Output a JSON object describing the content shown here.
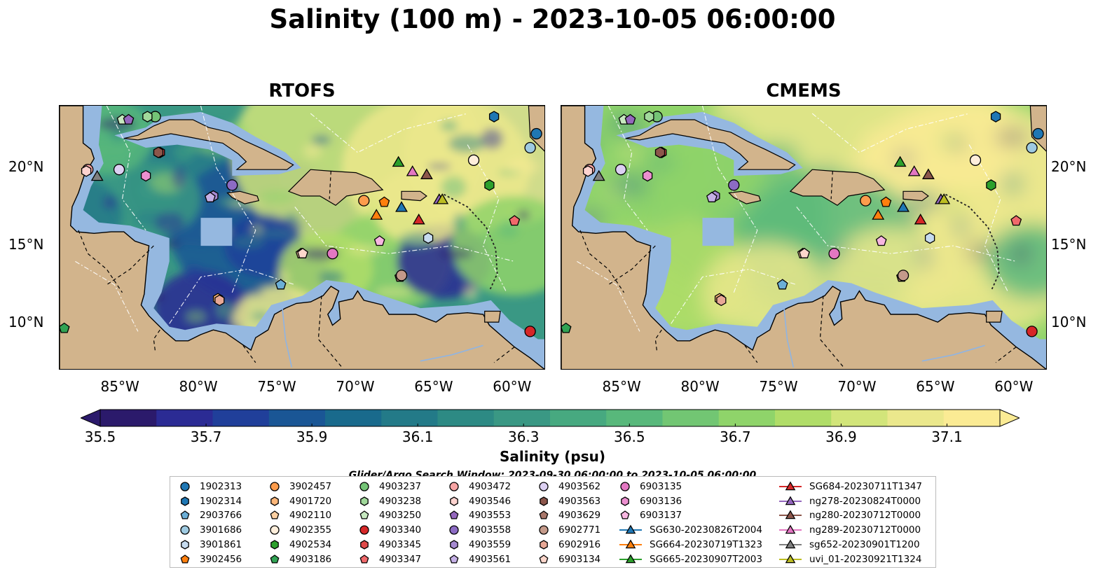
{
  "title": "Salinity (100 m) - 2023-10-05 06:00:00",
  "panels": [
    {
      "title": "RTOFS",
      "field_style": "rtofs"
    },
    {
      "title": "CMEMS",
      "field_style": "cmems"
    }
  ],
  "map": {
    "lon_range": [
      -89,
      -58
    ],
    "lat_range": [
      7,
      24
    ],
    "lon_ticks": [
      {
        "v": -85,
        "label": "85°W"
      },
      {
        "v": -80,
        "label": "80°W"
      },
      {
        "v": -75,
        "label": "75°W"
      },
      {
        "v": -70,
        "label": "70°W"
      },
      {
        "v": -65,
        "label": "65°W"
      },
      {
        "v": -60,
        "label": "60°W"
      }
    ],
    "lat_ticks": [
      {
        "v": 20,
        "label": "20°N"
      },
      {
        "v": 15,
        "label": "15°N"
      },
      {
        "v": 10,
        "label": "10°N"
      }
    ],
    "land_color": "#d2b48c",
    "shelf_color": "#95b8e0"
  },
  "colorbar": {
    "label": "Salinity (psu)",
    "min": 35.5,
    "max": 37.2,
    "step": 0.1,
    "extend": "both",
    "ticks": [
      "35.5",
      "35.7",
      "35.9",
      "36.1",
      "36.3",
      "36.5",
      "36.7",
      "36.9",
      "37.1"
    ],
    "colors": [
      "#2b1a6b",
      "#2b2b94",
      "#203f9a",
      "#1a5695",
      "#196a8c",
      "#237a88",
      "#2d8a84",
      "#3a9884",
      "#47a980",
      "#58b87b",
      "#72c673",
      "#8fd46a",
      "#b0dd68",
      "#d2e57a",
      "#ebe88c",
      "#fbeb94"
    ]
  },
  "search_window": "Glider/Argo Search Window: 2023-09-30 06:00:00 to 2023-10-05 06:00:00",
  "legend": [
    {
      "label": "1902313",
      "marker": "circle",
      "color": "#1f77b4"
    },
    {
      "label": "1902314",
      "marker": "hexagon",
      "color": "#1f77b4"
    },
    {
      "label": "2903766",
      "marker": "pentagon",
      "color": "#6baed6"
    },
    {
      "label": "3901686",
      "marker": "circle",
      "color": "#9ecae1"
    },
    {
      "label": "3901861",
      "marker": "hexagon",
      "color": "#c6dbef"
    },
    {
      "label": "3902456",
      "marker": "pentagon",
      "color": "#ff7f0e"
    },
    {
      "label": "3902457",
      "marker": "circle",
      "color": "#fd9c4c"
    },
    {
      "label": "4901720",
      "marker": "hexagon",
      "color": "#fdb77a"
    },
    {
      "label": "4902110",
      "marker": "pentagon",
      "color": "#fdd0a2"
    },
    {
      "label": "4902355",
      "marker": "circle",
      "color": "#feeedb"
    },
    {
      "label": "4902534",
      "marker": "hexagon",
      "color": "#2ca02c"
    },
    {
      "label": "4903186",
      "marker": "pentagon",
      "color": "#31a354"
    },
    {
      "label": "4903237",
      "marker": "circle",
      "color": "#74c476"
    },
    {
      "label": "4903238",
      "marker": "hexagon",
      "color": "#a1d99b"
    },
    {
      "label": "4903250",
      "marker": "pentagon",
      "color": "#c7e9c0"
    },
    {
      "label": "4903340",
      "marker": "circle",
      "color": "#d62728"
    },
    {
      "label": "4903345",
      "marker": "hexagon",
      "color": "#e04a4a"
    },
    {
      "label": "4903347",
      "marker": "pentagon",
      "color": "#f0696b"
    },
    {
      "label": "4903472",
      "marker": "circle",
      "color": "#f7a4a4"
    },
    {
      "label": "4903546",
      "marker": "hexagon",
      "color": "#fdd3cf"
    },
    {
      "label": "4903553",
      "marker": "pentagon",
      "color": "#9467bd"
    },
    {
      "label": "4903558",
      "marker": "circle",
      "color": "#8c6bc4"
    },
    {
      "label": "4903559",
      "marker": "hexagon",
      "color": "#a68ad1"
    },
    {
      "label": "4903561",
      "marker": "pentagon",
      "color": "#c5b0e6"
    },
    {
      "label": "4903562",
      "marker": "circle",
      "color": "#dcd0f2"
    },
    {
      "label": "4903563",
      "marker": "hexagon",
      "color": "#8c564b"
    },
    {
      "label": "4903629",
      "marker": "pentagon",
      "color": "#a9776a"
    },
    {
      "label": "6902771",
      "marker": "circle",
      "color": "#c49a8a"
    },
    {
      "label": "6902916",
      "marker": "hexagon",
      "color": "#e8a896"
    },
    {
      "label": "6903134",
      "marker": "pentagon",
      "color": "#fcd6cb"
    },
    {
      "label": "6903135",
      "marker": "circle",
      "color": "#e377c2"
    },
    {
      "label": "6903136",
      "marker": "hexagon",
      "color": "#ec8fd0"
    },
    {
      "label": "6903137",
      "marker": "pentagon",
      "color": "#f7b6e0"
    },
    {
      "label": "SG630-20230826T2004",
      "marker": "triangle",
      "color": "#1f77b4"
    },
    {
      "label": "SG664-20230719T1323",
      "marker": "triangle",
      "color": "#ff7f0e"
    },
    {
      "label": "SG665-20230907T2003",
      "marker": "triangle",
      "color": "#2ca02c"
    },
    {
      "label": "SG684-20230711T1347",
      "marker": "triangle",
      "color": "#d62728"
    },
    {
      "label": "ng278-20230824T0000",
      "marker": "triangle",
      "color": "#9467bd"
    },
    {
      "label": "ng280-20230712T0000",
      "marker": "triangle",
      "color": "#8c564b"
    },
    {
      "label": "ng289-20230712T0000",
      "marker": "triangle",
      "color": "#e377c2"
    },
    {
      "label": "sg652-20230901T1200",
      "marker": "triangle",
      "color": "#7f7f7f"
    },
    {
      "label": "uvi_01-20230921T1324",
      "marker": "triangle",
      "color": "#bcbd22"
    }
  ],
  "stations": [
    {
      "id": "1902313",
      "lon": -58.6,
      "lat": 22.2
    },
    {
      "id": "1902314",
      "lon": -61.3,
      "lat": 23.3
    },
    {
      "id": "2903766",
      "lon": -74.9,
      "lat": 12.5
    },
    {
      "id": "3901686",
      "lon": -59.0,
      "lat": 21.3
    },
    {
      "id": "3901861",
      "lon": -65.5,
      "lat": 15.5
    },
    {
      "id": "3902456",
      "lon": -68.3,
      "lat": 17.8
    },
    {
      "id": "3902457",
      "lon": -69.6,
      "lat": 17.9
    },
    {
      "id": "4901720",
      "lon": -78.9,
      "lat": 11.6
    },
    {
      "id": "4902110",
      "lon": -73.6,
      "lat": 14.5
    },
    {
      "id": "4902355",
      "lon": -62.6,
      "lat": 20.5
    },
    {
      "id": "4902534",
      "lon": -61.6,
      "lat": 18.9
    },
    {
      "id": "4903186",
      "lon": -88.7,
      "lat": 9.7
    },
    {
      "id": "4903237",
      "lon": -82.9,
      "lat": 23.3
    },
    {
      "id": "4903238",
      "lon": -83.4,
      "lat": 23.3
    },
    {
      "id": "4903250",
      "lon": -85.0,
      "lat": 23.1
    },
    {
      "id": "4903340",
      "lon": -59.0,
      "lat": 9.5
    },
    {
      "id": "4903345",
      "lon": -82.6,
      "lat": 21.0
    },
    {
      "id": "4903347",
      "lon": -60.0,
      "lat": 16.6
    },
    {
      "id": "4903472",
      "lon": -87.2,
      "lat": 19.9
    },
    {
      "id": "4903546",
      "lon": -87.3,
      "lat": 19.8
    },
    {
      "id": "4903553",
      "lon": -84.6,
      "lat": 23.1
    },
    {
      "id": "4903558",
      "lon": -78.0,
      "lat": 18.9
    },
    {
      "id": "4903559",
      "lon": -79.2,
      "lat": 18.2
    },
    {
      "id": "4903561",
      "lon": -79.4,
      "lat": 18.1
    },
    {
      "id": "4903562",
      "lon": -85.2,
      "lat": 19.9
    },
    {
      "id": "4903563",
      "lon": -82.7,
      "lat": 21.0
    },
    {
      "id": "4903629",
      "lon": -67.3,
      "lat": 13.0
    },
    {
      "id": "6902771",
      "lon": -67.2,
      "lat": 13.1
    },
    {
      "id": "6902916",
      "lon": -78.8,
      "lat": 11.5
    },
    {
      "id": "6903134",
      "lon": -73.5,
      "lat": 14.5
    },
    {
      "id": "6903135",
      "lon": -71.6,
      "lat": 14.5
    },
    {
      "id": "6903136",
      "lon": -83.5,
      "lat": 19.5
    },
    {
      "id": "6903137",
      "lon": -68.6,
      "lat": 15.3
    },
    {
      "id": "SG630-20230826T2004",
      "lon": -67.2,
      "lat": 17.5
    },
    {
      "id": "SG664-20230719T1323",
      "lon": -68.8,
      "lat": 17.0
    },
    {
      "id": "SG665-20230907T2003",
      "lon": -67.4,
      "lat": 20.4
    },
    {
      "id": "SG684-20230711T1347",
      "lon": -66.1,
      "lat": 16.7
    },
    {
      "id": "ng278-20230824T0000",
      "lon": -64.8,
      "lat": 18.0
    },
    {
      "id": "ng280-20230712T0000",
      "lon": -65.6,
      "lat": 19.6
    },
    {
      "id": "ng289-20230712T0000",
      "lon": -66.5,
      "lat": 19.8
    },
    {
      "id": "sg652-20230901T1200",
      "lon": -86.6,
      "lat": 19.5
    },
    {
      "id": "uvi_01-20230921T1324",
      "lon": -64.6,
      "lat": 18.0
    }
  ]
}
